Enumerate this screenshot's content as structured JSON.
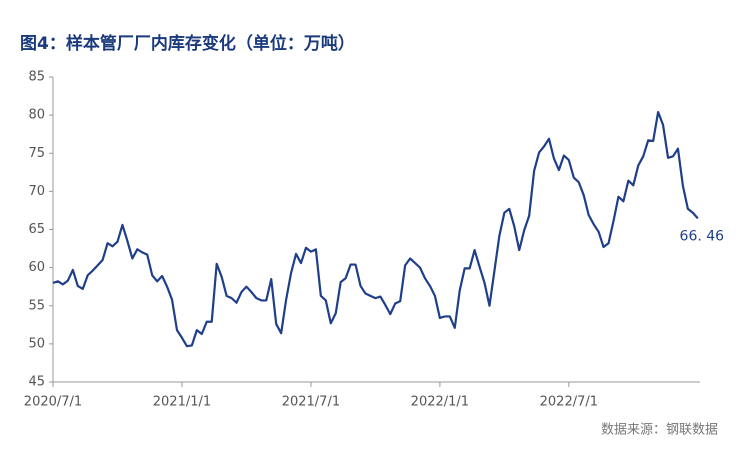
{
  "chart_data": {
    "type": "line",
    "title": "图4：样本管厂厂内库存变化（单位：万吨）",
    "source": "数据来源：钢联数据",
    "categories": [
      "2020/7/1",
      null,
      null,
      null,
      null,
      null,
      null,
      null,
      null,
      null,
      null,
      null,
      null,
      null,
      null,
      null,
      null,
      null,
      null,
      null,
      null,
      null,
      null,
      null,
      null,
      null,
      "2021/1/1",
      null,
      null,
      null,
      null,
      null,
      null,
      null,
      null,
      null,
      null,
      null,
      null,
      null,
      null,
      null,
      null,
      null,
      null,
      null,
      null,
      null,
      null,
      null,
      null,
      null,
      "2021/7/1",
      null,
      null,
      null,
      null,
      null,
      null,
      null,
      null,
      null,
      null,
      null,
      null,
      null,
      null,
      null,
      null,
      null,
      null,
      null,
      null,
      null,
      null,
      null,
      null,
      null,
      "2022/1/1",
      null,
      null,
      null,
      null,
      null,
      null,
      null,
      null,
      null,
      null,
      null,
      null,
      null,
      null,
      null,
      null,
      null,
      null,
      null,
      null,
      null,
      null,
      null,
      null,
      null,
      "2022/7/1",
      null,
      null,
      null,
      null,
      null,
      null,
      null,
      null,
      null,
      null,
      null,
      null,
      null,
      null,
      null,
      null,
      null,
      null,
      null,
      null,
      null,
      null,
      null,
      null,
      null,
      null
    ],
    "values": [
      58.0,
      58.2,
      57.8,
      58.3,
      59.7,
      57.6,
      57.2,
      59.0,
      59.6,
      60.3,
      61.0,
      63.2,
      62.8,
      63.4,
      65.6,
      63.5,
      61.2,
      62.4,
      62.0,
      61.7,
      59.0,
      58.2,
      58.9,
      57.5,
      55.8,
      51.8,
      50.8,
      49.7,
      49.8,
      51.8,
      51.3,
      52.9,
      52.9,
      60.5,
      58.8,
      56.3,
      56.0,
      55.4,
      56.8,
      57.5,
      56.8,
      56.0,
      55.7,
      55.7,
      58.5,
      52.6,
      51.4,
      55.8,
      59.3,
      61.8,
      60.6,
      62.6,
      62.1,
      62.4,
      56.3,
      55.7,
      52.7,
      54.0,
      58.1,
      58.6,
      60.4,
      60.4,
      57.6,
      56.6,
      56.3,
      56.0,
      56.2,
      55.1,
      53.9,
      55.3,
      55.6,
      60.3,
      61.2,
      60.6,
      60.0,
      58.6,
      57.6,
      56.3,
      53.4,
      53.6,
      53.6,
      52.1,
      57.0,
      59.9,
      59.9,
      62.3,
      60.1,
      58.0,
      55.0,
      59.6,
      64.2,
      67.2,
      67.7,
      65.4,
      62.3,
      64.9,
      66.8,
      72.7,
      75.1,
      75.9,
      76.9,
      74.3,
      72.8,
      74.7,
      74.1,
      71.8,
      71.2,
      69.5,
      66.9,
      65.7,
      64.7,
      62.7,
      63.2,
      66.1,
      69.3,
      68.7,
      71.4,
      70.8,
      73.4,
      74.6,
      76.7,
      76.6,
      80.4,
      78.7,
      74.4,
      74.6,
      75.6,
      70.7,
      67.7,
      67.2,
      66.46
    ],
    "value_labels": [
      null,
      null,
      null,
      null,
      null,
      null,
      null,
      null,
      null,
      null,
      null,
      null,
      null,
      null,
      null,
      null,
      null,
      null,
      null,
      null,
      null,
      null,
      null,
      null,
      null,
      null,
      null,
      null,
      null,
      null,
      null,
      null,
      null,
      null,
      null,
      null,
      null,
      null,
      null,
      null,
      null,
      null,
      null,
      null,
      null,
      null,
      null,
      null,
      null,
      null,
      null,
      null,
      null,
      null,
      null,
      null,
      null,
      null,
      null,
      null,
      null,
      null,
      null,
      null,
      null,
      null,
      null,
      null,
      null,
      null,
      null,
      null,
      null,
      null,
      null,
      null,
      null,
      null,
      null,
      null,
      null,
      null,
      null,
      null,
      null,
      null,
      null,
      null,
      null,
      null,
      null,
      null,
      null,
      null,
      null,
      null,
      null,
      null,
      null,
      null,
      null,
      null,
      null,
      null,
      null,
      null,
      null,
      null,
      null,
      null,
      null,
      null,
      null,
      null,
      null,
      null,
      null,
      null,
      null,
      null,
      null,
      null,
      null,
      null,
      null,
      null,
      null,
      null,
      null,
      null,
      "66. 46"
    ],
    "color": "#1f3f8a",
    "ylim": [
      45,
      85
    ],
    "yticks": [
      45,
      50,
      55,
      60,
      65,
      70,
      75,
      80,
      85
    ],
    "grid": false
  }
}
